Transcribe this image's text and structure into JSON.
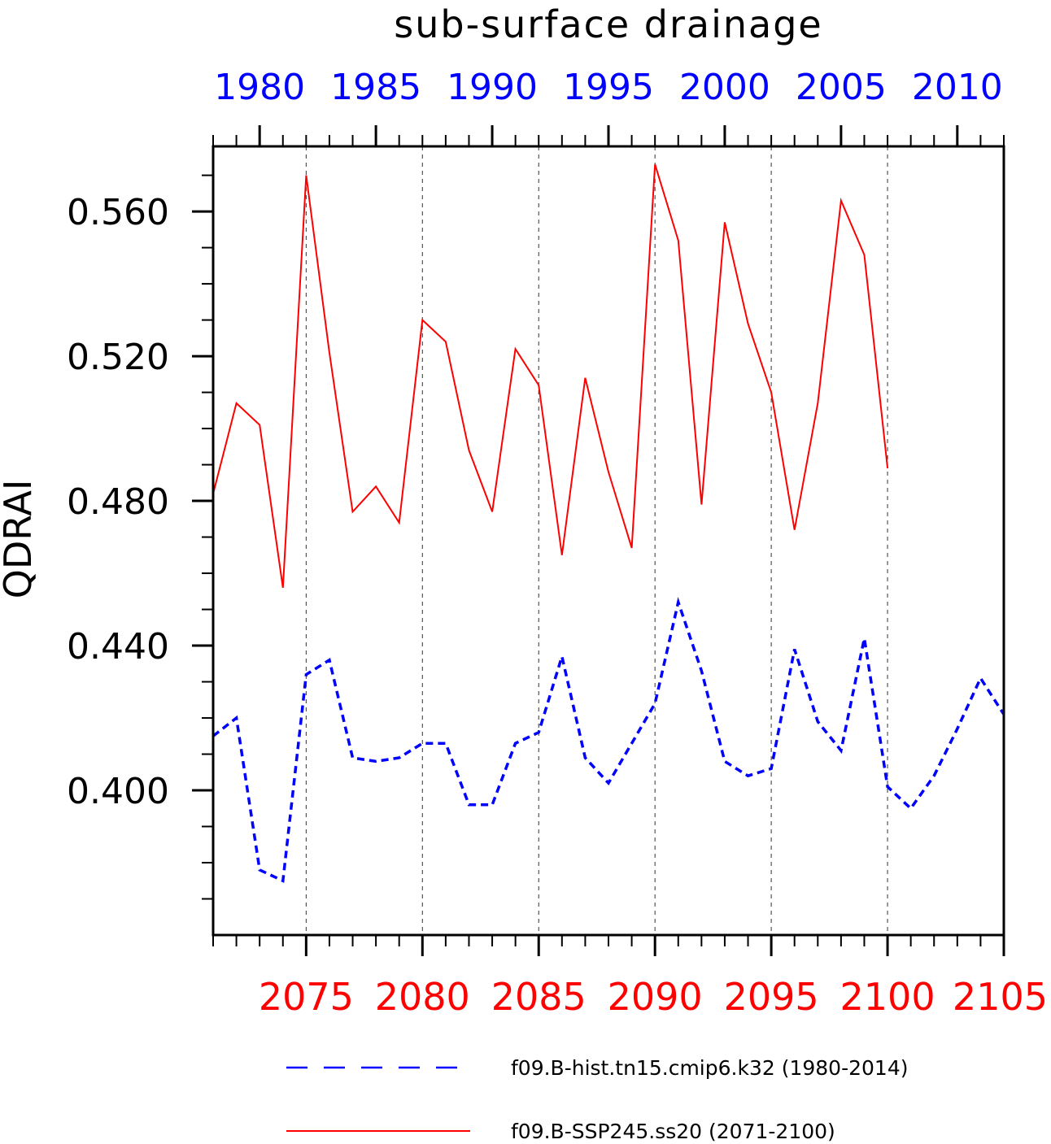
{
  "chart_data": {
    "type": "line",
    "title": "sub-surface drainage",
    "ylabel": "QDRAI",
    "ylim": [
      0.36,
      0.578
    ],
    "y_ticks": [
      "0.400",
      "0.440",
      "0.480",
      "0.520",
      "0.560"
    ],
    "grid": "vertical dashed at bottom-axis major ticks",
    "legend_position": "bottom",
    "colors": {
      "hist": "#0000ff",
      "ssp": "#ff0000",
      "axes": "#000000"
    },
    "top_axis": {
      "color": "#0000ff",
      "range": [
        1978,
        2012
      ],
      "ticks": [
        "1980",
        "1985",
        "1990",
        "1995",
        "2000",
        "2005",
        "2010"
      ]
    },
    "bottom_axis": {
      "color": "#ff0000",
      "range": [
        2071,
        2105
      ],
      "ticks": [
        "2075",
        "2080",
        "2085",
        "2090",
        "2095",
        "2100",
        "2105"
      ]
    },
    "series": [
      {
        "name": "f09.B-hist.tn15.cmip6.k32 (1980-2014)",
        "style": "dashed",
        "x_axis": "top",
        "x": [
          1978,
          1979,
          1980,
          1981,
          1982,
          1983,
          1984,
          1985,
          1986,
          1987,
          1988,
          1989,
          1990,
          1991,
          1992,
          1993,
          1994,
          1995,
          1996,
          1997,
          1998,
          1999,
          2000,
          2001,
          2002,
          2003,
          2004,
          2005,
          2006,
          2007,
          2008,
          2009,
          2010,
          2011,
          2012
        ],
        "values": [
          0.415,
          0.42,
          0.378,
          0.375,
          0.432,
          0.436,
          0.409,
          0.408,
          0.409,
          0.413,
          0.413,
          0.396,
          0.396,
          0.413,
          0.416,
          0.437,
          0.409,
          0.402,
          0.413,
          0.424,
          0.452,
          0.433,
          0.408,
          0.404,
          0.406,
          0.439,
          0.419,
          0.411,
          0.442,
          0.401,
          0.395,
          0.404,
          0.417,
          0.431,
          0.421
        ]
      },
      {
        "name": "f09.B-SSP245.ss20 (2071-2100)",
        "style": "solid",
        "x_axis": "bottom",
        "x": [
          2071,
          2072,
          2073,
          2074,
          2075,
          2076,
          2077,
          2078,
          2079,
          2080,
          2081,
          2082,
          2083,
          2084,
          2085,
          2086,
          2087,
          2088,
          2089,
          2090,
          2091,
          2092,
          2093,
          2094,
          2095,
          2096,
          2097,
          2098,
          2099,
          2100
        ],
        "values": [
          0.482,
          0.507,
          0.501,
          0.456,
          0.57,
          0.521,
          0.477,
          0.484,
          0.474,
          0.53,
          0.524,
          0.494,
          0.477,
          0.522,
          0.512,
          0.465,
          0.514,
          0.488,
          0.467,
          0.573,
          0.552,
          0.479,
          0.557,
          0.529,
          0.51,
          0.472,
          0.507,
          0.563,
          0.548,
          0.489
        ]
      }
    ]
  }
}
